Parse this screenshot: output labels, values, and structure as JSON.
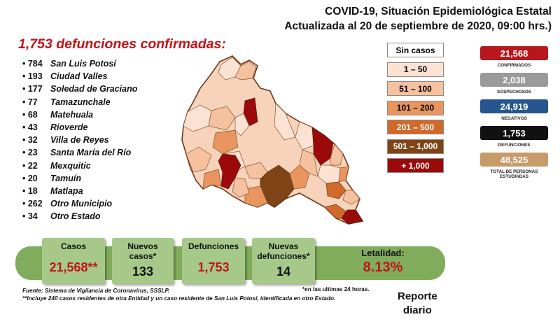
{
  "header": {
    "line1": "COVID-19, Situación Epidemiológica Estatal",
    "line2": "Actualizada al 20 de septiembre de 2020, 09:00 hrs.)"
  },
  "deaths_title": "1,753 defunciones confirmadas:",
  "municipalities": [
    {
      "count": "784",
      "name": "San Luis Potosí"
    },
    {
      "count": "193",
      "name": "Ciudad Valles"
    },
    {
      "count": "177",
      "name": "Soledad de Graciano"
    },
    {
      "count": "77",
      "name": "Tamazunchale"
    },
    {
      "count": "68",
      "name": "Matehuala"
    },
    {
      "count": "43",
      "name": "Rioverde"
    },
    {
      "count": "32",
      "name": "Villa de Reyes"
    },
    {
      "count": "23",
      "name": "Santa María del Río"
    },
    {
      "count": "22",
      "name": "Mexquitic"
    },
    {
      "count": "20",
      "name": "Tamuín"
    },
    {
      "count": "18",
      "name": "Matlapa"
    },
    {
      "count": "262",
      "name": "Otro Municipio"
    },
    {
      "count": "34",
      "name": "Otro Estado"
    }
  ],
  "legend": [
    {
      "label": "Sin casos",
      "color": "#ffffff",
      "text_color": "#000000"
    },
    {
      "label": "1 – 50",
      "color": "#fbe2d3",
      "text_color": "#000000"
    },
    {
      "label": "51 – 100",
      "color": "#f5c19f",
      "text_color": "#000000"
    },
    {
      "label": "101 – 200",
      "color": "#e8955f",
      "text_color": "#000000"
    },
    {
      "label": "201 – 500",
      "color": "#cf6a2b",
      "text_color": "#ffffff"
    },
    {
      "label": "501 – 1,000",
      "color": "#7f4416",
      "text_color": "#ffffff"
    },
    {
      "label": "+ 1,000",
      "color": "#9b0a0a",
      "text_color": "#ffffff"
    }
  ],
  "stats": [
    {
      "value": "21,568",
      "label": "CONFIRMADOS",
      "color": "#b8171c"
    },
    {
      "value": "2,038",
      "label": "SOSPECHOSOS",
      "color": "#9a9a9a"
    },
    {
      "value": "24,919",
      "label": "NEGATIVOS",
      "color": "#25568f"
    },
    {
      "value": "1,753",
      "label": "DEFUNCIONES",
      "color": "#111111"
    },
    {
      "value": "48,525",
      "label": "TOTAL DE PERSONAS ESTUDIADAS",
      "color": "#c79a6a"
    }
  ],
  "banner": {
    "casos_label": "Casos",
    "casos_value": "21,568**",
    "nuevos_label": "Nuevos casos*",
    "nuevos_value": "133",
    "defunciones_label": "Defunciones",
    "defunciones_value": "1,753",
    "nuevas_def_label": "Nuevas defunciones*",
    "nuevas_def_value": "14",
    "letalidad_label": "Letalidad:",
    "letalidad_value": "8.13%"
  },
  "footnotes": {
    "fuente": "Fuente: Sistema de Vigilancia de Coronavirus, SSSLP.",
    "note24": "*en las ultimas 24 horas.",
    "note_includes": "**Incluye 240 casos residentes de otra Entidad y un caso residente de San Luis Potosí, identificada en otro Estado."
  },
  "reporte": {
    "line1": "Reporte",
    "line2": "diario"
  }
}
